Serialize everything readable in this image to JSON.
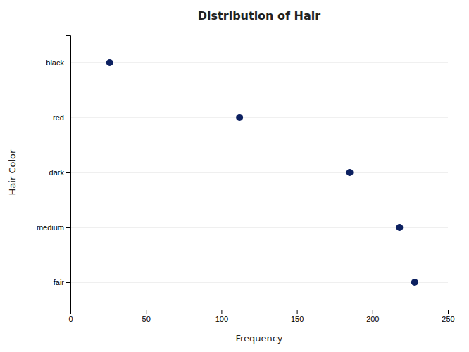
{
  "chart_data": {
    "type": "scatter",
    "orientation": "horizontal",
    "title": "Distribution of Hair",
    "x_label": "Frequency",
    "y_label": "Hair Color",
    "categories": [
      "black",
      "red",
      "dark",
      "medium",
      "fair"
    ],
    "values": [
      26,
      112,
      185,
      218,
      228
    ],
    "color": "#0C2060",
    "xlim": [
      0,
      250
    ],
    "xticks": [
      0,
      50,
      100,
      150,
      200,
      250
    ],
    "grid": true
  }
}
